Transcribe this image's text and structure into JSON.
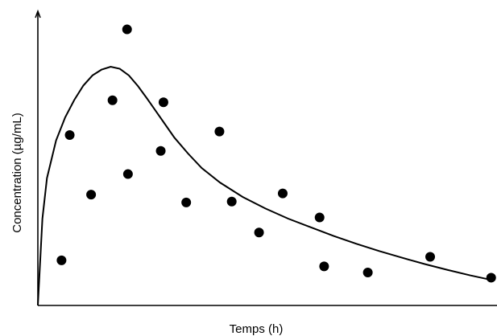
{
  "chart_data": {
    "type": "scatter",
    "xlabel": "Temps (h)",
    "ylabel": "Concentration (µg/mL)",
    "xlim": [
      0,
      100
    ],
    "ylim": [
      0,
      100
    ],
    "grid": false,
    "series": [
      {
        "type": "scatter",
        "points": [
          {
            "x": 5.2,
            "y": 15.6
          },
          {
            "x": 7.0,
            "y": 58.9
          },
          {
            "x": 11.7,
            "y": 38.3
          },
          {
            "x": 16.4,
            "y": 70.9
          },
          {
            "x": 19.6,
            "y": 95.4
          },
          {
            "x": 19.8,
            "y": 45.4
          },
          {
            "x": 27.0,
            "y": 53.4
          },
          {
            "x": 27.6,
            "y": 70.2
          },
          {
            "x": 32.6,
            "y": 35.6
          },
          {
            "x": 39.9,
            "y": 60.1
          },
          {
            "x": 42.6,
            "y": 35.9
          },
          {
            "x": 48.6,
            "y": 25.2
          },
          {
            "x": 53.8,
            "y": 38.7
          },
          {
            "x": 61.9,
            "y": 30.4
          },
          {
            "x": 62.9,
            "y": 13.5
          },
          {
            "x": 72.5,
            "y": 11.4
          },
          {
            "x": 86.2,
            "y": 16.8
          },
          {
            "x": 99.6,
            "y": 9.6
          }
        ]
      },
      {
        "type": "line",
        "points": [
          {
            "x": 0,
            "y": 0
          },
          {
            "x": 1,
            "y": 30
          },
          {
            "x": 2,
            "y": 44
          },
          {
            "x": 4,
            "y": 57
          },
          {
            "x": 6,
            "y": 65
          },
          {
            "x": 8,
            "y": 71
          },
          {
            "x": 10,
            "y": 76
          },
          {
            "x": 12,
            "y": 79.5
          },
          {
            "x": 14,
            "y": 81.5
          },
          {
            "x": 16,
            "y": 82.5
          },
          {
            "x": 18,
            "y": 81.8
          },
          {
            "x": 20,
            "y": 79.5
          },
          {
            "x": 22,
            "y": 75.8
          },
          {
            "x": 24,
            "y": 71.5
          },
          {
            "x": 26,
            "y": 67
          },
          {
            "x": 28,
            "y": 62.5
          },
          {
            "x": 30,
            "y": 58
          },
          {
            "x": 33,
            "y": 52.5
          },
          {
            "x": 36,
            "y": 47.5
          },
          {
            "x": 40,
            "y": 42.5
          },
          {
            "x": 45,
            "y": 37.5
          },
          {
            "x": 50,
            "y": 33.5
          },
          {
            "x": 55,
            "y": 30
          },
          {
            "x": 60,
            "y": 27
          },
          {
            "x": 65,
            "y": 24
          },
          {
            "x": 70,
            "y": 21.3
          },
          {
            "x": 75,
            "y": 18.8
          },
          {
            "x": 80,
            "y": 16.5
          },
          {
            "x": 85,
            "y": 14.3
          },
          {
            "x": 90,
            "y": 12.3
          },
          {
            "x": 95,
            "y": 10.4
          },
          {
            "x": 100,
            "y": 8.7
          }
        ]
      }
    ]
  }
}
